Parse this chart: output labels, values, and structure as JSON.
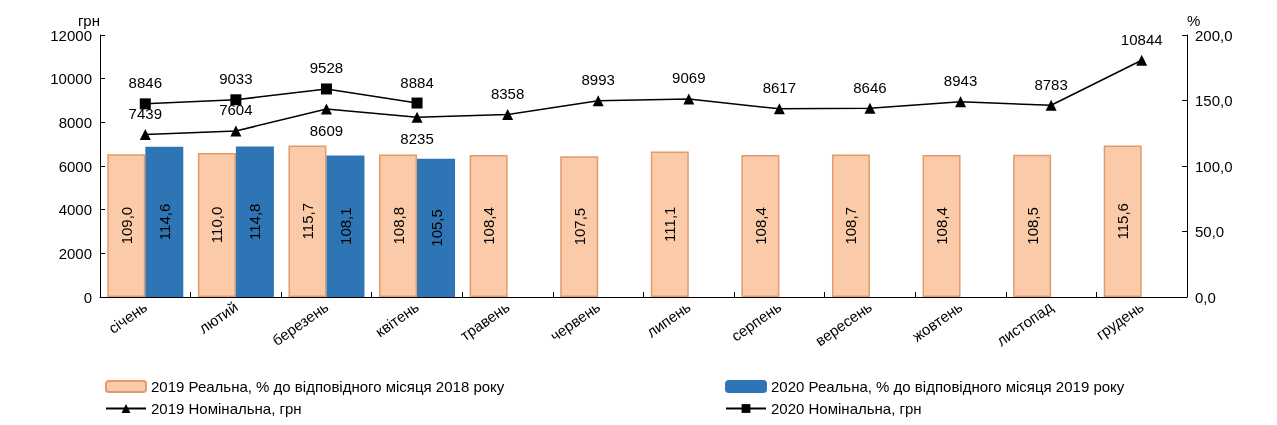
{
  "chart_data": {
    "type": "bar",
    "ylabel": "грн",
    "y2label": "%",
    "categories": [
      "січень",
      "лютий",
      "березень",
      "квітень",
      "травень",
      "червень",
      "липень",
      "серпень",
      "вересень",
      "жовтень",
      "листопад",
      "грудень"
    ],
    "series": [
      {
        "name": "2019 Реальна, % до відповідного місяця 2018 року",
        "axis": "y2",
        "color": "#fbcaa8",
        "values": [
          109.0,
          110.0,
          115.7,
          108.8,
          108.4,
          107.5,
          111.1,
          108.4,
          108.7,
          108.4,
          108.5,
          115.6
        ],
        "value_labels": [
          "109,0",
          "110,0",
          "115,7",
          "108,8",
          "108,4",
          "107,5",
          "111,1",
          "108,4",
          "108,7",
          "108,4",
          "108,5",
          "115,6"
        ]
      },
      {
        "name": "2020 Реальна, % до відповідного місяця 2019 року",
        "axis": "y2",
        "color": "#2e75b6",
        "values": [
          114.6,
          114.8,
          108.1,
          105.5,
          null,
          null,
          null,
          null,
          null,
          null,
          null,
          null
        ],
        "value_labels": [
          "114,6",
          "114,8",
          "108,1",
          "105,5",
          null,
          null,
          null,
          null,
          null,
          null,
          null,
          null
        ]
      },
      {
        "name": "2019 Номінальна, грн",
        "type": "line",
        "marker": "triangle",
        "color": "#000000",
        "values": [
          7439,
          7604,
          8609,
          8235,
          8358,
          8993,
          9069,
          8617,
          8646,
          8943,
          8783,
          10844
        ],
        "value_labels": [
          "7439",
          "7604",
          "8609",
          "8235",
          "8358",
          "8993",
          "9069",
          "8617",
          "8646",
          "8943",
          "8783",
          "10844"
        ]
      },
      {
        "name": "2020 Номінальна, грн",
        "type": "line",
        "marker": "square",
        "color": "#000000",
        "values": [
          8846,
          9033,
          9528,
          8884,
          null,
          null,
          null,
          null,
          null,
          null,
          null,
          null
        ],
        "value_labels": [
          "8846",
          "9033",
          "9528",
          "8884",
          null,
          null,
          null,
          null,
          null,
          null,
          null,
          null
        ]
      }
    ],
    "ylim": [
      0,
      12000
    ],
    "yticks": [
      0,
      2000,
      4000,
      6000,
      8000,
      10000,
      12000
    ],
    "y2lim": [
      0,
      200
    ],
    "y2ticks": [
      {
        "value": 0,
        "label": "0,0"
      },
      {
        "value": 50,
        "label": "50,0"
      },
      {
        "value": 100,
        "label": "100,0"
      },
      {
        "value": 150,
        "label": "150,0"
      },
      {
        "value": 200,
        "label": "200,0"
      }
    ],
    "grid": false,
    "legend": "bottom"
  }
}
